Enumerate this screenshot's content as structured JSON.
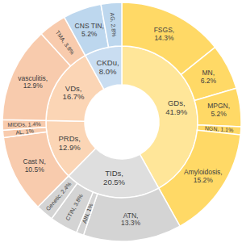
{
  "chart_data": {
    "type": "sunburst",
    "data_labels": true,
    "groups": [
      {
        "value": 41.9,
        "label": "GDs, 41.9%",
        "color": "#ffe699",
        "children": [
          {
            "value": 14.3,
            "label": "FSGS, 14.3%",
            "color": "#ffd966"
          },
          {
            "value": 6.2,
            "label": "MN, 6.2%",
            "color": "#ffd966"
          },
          {
            "value": 5.2,
            "label": "MPGN, 5.2%",
            "color": "#ffd966"
          },
          {
            "value": 1.1,
            "label": "NGN, 1.1%",
            "color": "#ffd966"
          },
          {
            "value": 15.2,
            "label": "Amyloidosis, 15.2%",
            "color": "#ffd966"
          }
        ]
      },
      {
        "value": 20.5,
        "label": "TIDs, 20.5%",
        "color": "#dedede",
        "children": [
          {
            "value": 13.3,
            "label": "ATN, 13.3%",
            "color": "#d4d4d4"
          },
          {
            "value": 1,
            "label": "AIN, 1%",
            "color": "#d4d4d4"
          },
          {
            "value": 3.8,
            "label": "CTIN, 3.8%",
            "color": "#d4d4d4"
          },
          {
            "value": 2.4,
            "label": "Genetic, 2.4%",
            "color": "#d4d4d4"
          }
        ]
      },
      {
        "value": 12.9,
        "label": "PRDs, 12.9%",
        "color": "#fbd5b5",
        "children": [
          {
            "value": 10.5,
            "label": "Cast N, 10.5%",
            "color": "#f8cbad"
          },
          {
            "value": 1,
            "label": "AL, 1%",
            "color": "#f8cbad"
          },
          {
            "value": 1.4,
            "label": "MIDDs, 1.4%",
            "color": "#f8cbad"
          }
        ]
      },
      {
        "value": 16.7,
        "label": "VDs, 16.7%",
        "color": "#fbd5b5",
        "children": [
          {
            "value": 12.9,
            "label": "vasculitis, 12.9%",
            "color": "#f8cbad"
          },
          {
            "value": 3.8,
            "label": "TMA, 3.8%",
            "color": "#f8cbad"
          }
        ]
      },
      {
        "value": 8.0,
        "label": "CKDu, 8.0%",
        "color": "#c9ddf1",
        "children": [
          {
            "value": 5.2,
            "label": "CNS TIN, 5.2%",
            "color": "#bdd7ee"
          },
          {
            "value": 2.8,
            "label": "AG, 2.8%",
            "color": "#bdd7ee"
          }
        ]
      }
    ]
  }
}
